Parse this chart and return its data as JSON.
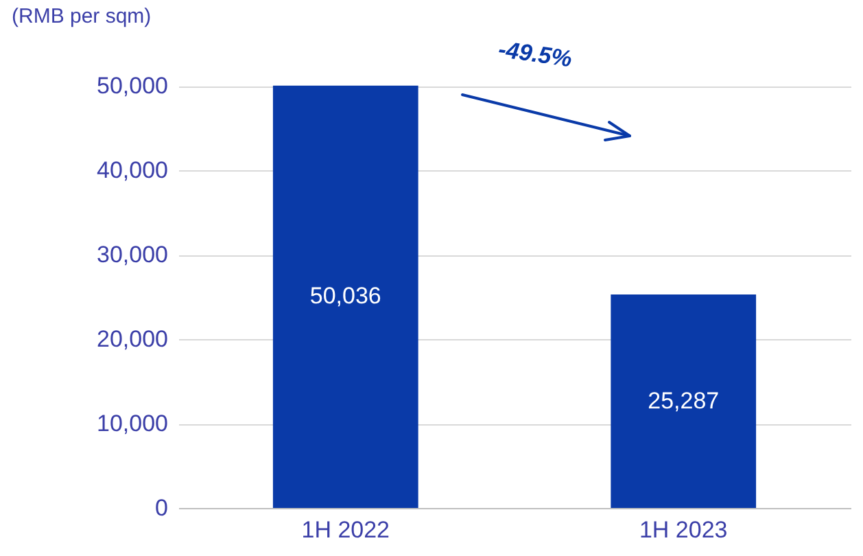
{
  "chart_data": {
    "type": "bar",
    "ylabel": "(RMB per sqm)",
    "categories": [
      "1H 2022",
      "1H 2023"
    ],
    "values": [
      50036,
      25287
    ],
    "color": "#0a3aa8",
    "ylim": [
      0,
      50100
    ],
    "yticks": [
      {
        "value": 0,
        "label": "0"
      },
      {
        "value": 10000,
        "label": "10,000"
      },
      {
        "value": 20000,
        "label": "20,000"
      },
      {
        "value": 30000,
        "label": "30,000"
      },
      {
        "value": 40000,
        "label": "40,000"
      },
      {
        "value": 50000,
        "label": "50,000"
      }
    ],
    "grid": "y",
    "value_labels": [
      "50,036",
      "25,287"
    ],
    "annotations": [
      "-49.5%"
    ]
  }
}
